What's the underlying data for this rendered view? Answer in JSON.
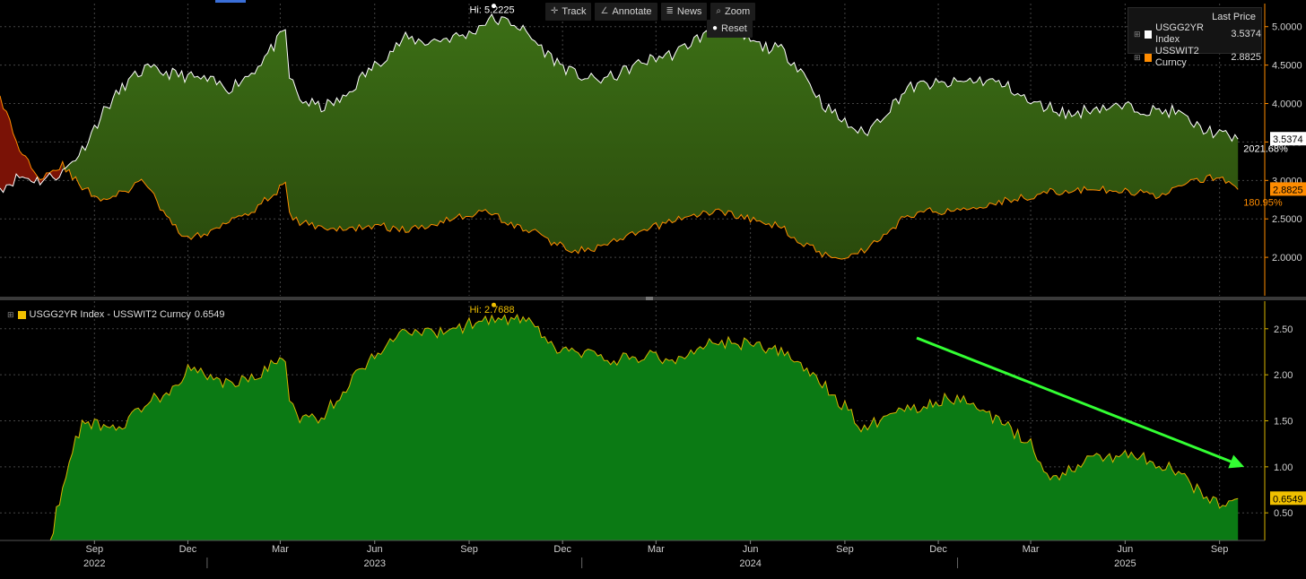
{
  "toolbar": {
    "track": "Track",
    "annotate": "Annotate",
    "news": "News",
    "zoom": "Zoom",
    "reset": "Reset"
  },
  "legend_top": {
    "title": "Last Price",
    "entries": [
      {
        "name": "USGG2YR Index",
        "value": "3.5374",
        "color": "#ffffff"
      },
      {
        "name": "USSWIT2 Curncy",
        "value": "2.8825",
        "color": "#ff8c00"
      }
    ]
  },
  "legend_bottom": {
    "name": "USGG2YR Index - USSWIT2 Curncy",
    "value": "0.6549",
    "color": "#f0c000"
  },
  "colors": {
    "upper_fill": "#3c6f16",
    "upper_fill_deep": "#2a4a0c",
    "yield_line": "#ffffff",
    "swap_line": "#ff8c00",
    "inverted_fill": "#7a1206",
    "lower_fill": "#0b7a14",
    "lower_line": "#d8b400",
    "arrow": "#33ff33",
    "axis_text": "#d0d0d0"
  },
  "chart_data": [
    {
      "type": "line",
      "panel": "top",
      "x_range": [
        "2022-06-01",
        "2025-10-15"
      ],
      "ylim": [
        1.5,
        5.3
      ],
      "y_ticks": [
        "2.0000",
        "2.5000",
        "3.0000",
        "3.5000",
        "4.0000",
        "4.5000",
        "5.0000"
      ],
      "series": [
        {
          "name": "USGG2YR Index",
          "x": [
            "2022-06-01",
            "2022-06-20",
            "2022-07-10",
            "2022-08-01",
            "2022-08-20",
            "2022-09-10",
            "2022-10-01",
            "2022-10-20",
            "2022-11-10",
            "2022-12-01",
            "2022-12-20",
            "2023-01-10",
            "2023-02-01",
            "2023-02-20",
            "2023-03-06",
            "2023-03-10",
            "2023-03-20",
            "2023-04-10",
            "2023-05-01",
            "2023-05-20",
            "2023-06-10",
            "2023-07-01",
            "2023-07-20",
            "2023-08-10",
            "2023-09-01",
            "2023-09-20",
            "2023-10-15",
            "2023-11-01",
            "2023-11-20",
            "2023-12-10",
            "2024-01-01",
            "2024-01-20",
            "2024-02-10",
            "2024-03-01",
            "2024-03-20",
            "2024-04-10",
            "2024-05-01",
            "2024-05-20",
            "2024-06-10",
            "2024-07-01",
            "2024-07-20",
            "2024-08-10",
            "2024-09-01",
            "2024-09-20",
            "2024-10-15",
            "2024-11-01",
            "2024-11-20",
            "2024-12-10",
            "2025-01-01",
            "2025-01-20",
            "2025-02-10",
            "2025-03-01",
            "2025-03-20",
            "2025-04-10",
            "2025-05-01",
            "2025-05-20",
            "2025-06-10",
            "2025-07-01",
            "2025-07-20",
            "2025-08-10",
            "2025-09-01",
            "2025-09-19"
          ],
          "values": [
            2.9,
            3.05,
            3.0,
            3.1,
            3.4,
            3.9,
            4.25,
            4.45,
            4.4,
            4.35,
            4.3,
            4.2,
            4.4,
            4.7,
            4.95,
            4.35,
            4.05,
            3.95,
            4.05,
            4.35,
            4.6,
            4.85,
            4.8,
            4.85,
            4.9,
            5.1,
            5.05,
            4.85,
            4.6,
            4.4,
            4.3,
            4.35,
            4.5,
            4.6,
            4.65,
            4.85,
            4.95,
            4.9,
            4.75,
            4.7,
            4.45,
            4.0,
            3.75,
            3.6,
            3.95,
            4.2,
            4.25,
            4.25,
            4.3,
            4.3,
            4.2,
            4.0,
            3.95,
            3.85,
            3.95,
            3.95,
            3.95,
            3.9,
            3.9,
            3.7,
            3.6,
            3.5374
          ]
        },
        {
          "name": "USSWIT2 Curncy",
          "x": [
            "2022-06-01",
            "2022-06-20",
            "2022-07-10",
            "2022-08-01",
            "2022-08-20",
            "2022-09-10",
            "2022-10-01",
            "2022-10-20",
            "2022-11-10",
            "2022-12-01",
            "2022-12-20",
            "2023-01-10",
            "2023-02-01",
            "2023-02-20",
            "2023-03-06",
            "2023-03-10",
            "2023-03-20",
            "2023-04-10",
            "2023-05-01",
            "2023-05-20",
            "2023-06-10",
            "2023-07-01",
            "2023-07-20",
            "2023-08-10",
            "2023-09-01",
            "2023-09-20",
            "2023-10-15",
            "2023-11-01",
            "2023-11-20",
            "2023-12-10",
            "2024-01-01",
            "2024-01-20",
            "2024-02-10",
            "2024-03-01",
            "2024-03-20",
            "2024-04-10",
            "2024-05-01",
            "2024-05-20",
            "2024-06-10",
            "2024-07-01",
            "2024-07-20",
            "2024-08-10",
            "2024-09-01",
            "2024-09-20",
            "2024-10-15",
            "2024-11-01",
            "2024-11-20",
            "2024-12-10",
            "2025-01-01",
            "2025-01-20",
            "2025-02-10",
            "2025-03-01",
            "2025-03-20",
            "2025-04-10",
            "2025-05-01",
            "2025-05-20",
            "2025-06-10",
            "2025-07-01",
            "2025-07-20",
            "2025-08-10",
            "2025-09-01",
            "2025-09-19"
          ],
          "values": [
            4.1,
            3.4,
            3.05,
            3.2,
            2.9,
            2.75,
            2.85,
            3.0,
            2.5,
            2.25,
            2.3,
            2.5,
            2.6,
            2.8,
            2.95,
            2.55,
            2.45,
            2.4,
            2.35,
            2.4,
            2.4,
            2.35,
            2.4,
            2.5,
            2.55,
            2.6,
            2.4,
            2.35,
            2.2,
            2.1,
            2.1,
            2.2,
            2.3,
            2.4,
            2.5,
            2.55,
            2.6,
            2.55,
            2.45,
            2.4,
            2.2,
            2.05,
            2.0,
            2.1,
            2.35,
            2.55,
            2.6,
            2.6,
            2.65,
            2.7,
            2.75,
            2.8,
            2.85,
            2.85,
            2.9,
            2.85,
            2.85,
            2.8,
            2.9,
            3.0,
            3.05,
            2.8825
          ]
        }
      ],
      "annotations": [
        {
          "text": "Hi: 5.2225",
          "x": "2023-09-25",
          "y": 5.2225
        },
        {
          "text": "2021.68%",
          "x": "2025-09-19",
          "y": 3.42
        },
        {
          "text": "180.95%",
          "x": "2025-09-19",
          "y": 2.72
        }
      ],
      "last_labels": [
        "3.5374",
        "2.8825"
      ]
    },
    {
      "type": "area",
      "panel": "bottom",
      "name": "USGG2YR Index - USSWIT2 Curncy",
      "x_range": [
        "2022-06-01",
        "2025-10-15"
      ],
      "ylim": [
        0.2,
        2.8
      ],
      "y_ticks": [
        "0.50",
        "1.00",
        "1.50",
        "2.00",
        "2.50"
      ],
      "x": [
        "2022-07-20",
        "2022-08-01",
        "2022-08-20",
        "2022-09-10",
        "2022-10-01",
        "2022-10-20",
        "2022-11-10",
        "2022-12-01",
        "2022-12-20",
        "2023-01-10",
        "2023-02-01",
        "2023-02-20",
        "2023-03-06",
        "2023-03-10",
        "2023-03-20",
        "2023-04-10",
        "2023-05-01",
        "2023-05-20",
        "2023-06-10",
        "2023-07-01",
        "2023-07-20",
        "2023-08-10",
        "2023-09-01",
        "2023-09-20",
        "2023-10-15",
        "2023-11-01",
        "2023-11-20",
        "2023-12-10",
        "2024-01-01",
        "2024-01-20",
        "2024-02-10",
        "2024-03-01",
        "2024-03-20",
        "2024-04-10",
        "2024-05-01",
        "2024-05-20",
        "2024-06-10",
        "2024-07-01",
        "2024-07-20",
        "2024-08-10",
        "2024-09-01",
        "2024-09-20",
        "2024-10-15",
        "2024-11-01",
        "2024-11-20",
        "2024-12-10",
        "2025-01-01",
        "2025-01-20",
        "2025-02-10",
        "2025-03-01",
        "2025-03-20",
        "2025-04-10",
        "2025-05-01",
        "2025-05-20",
        "2025-06-10",
        "2025-07-01",
        "2025-07-20",
        "2025-08-10",
        "2025-09-01",
        "2025-09-19"
      ],
      "values": [
        0.2,
        0.8,
        1.5,
        1.45,
        1.45,
        1.7,
        1.8,
        2.05,
        2.0,
        1.9,
        1.95,
        2.1,
        2.2,
        1.7,
        1.5,
        1.55,
        1.8,
        2.1,
        2.3,
        2.5,
        2.45,
        2.45,
        2.55,
        2.6,
        2.6,
        2.55,
        2.3,
        2.25,
        2.2,
        2.15,
        2.2,
        2.2,
        2.15,
        2.3,
        2.35,
        2.35,
        2.3,
        2.25,
        2.1,
        1.9,
        1.65,
        1.4,
        1.6,
        1.65,
        1.65,
        1.75,
        1.7,
        1.55,
        1.4,
        1.25,
        0.85,
        1.0,
        1.1,
        1.1,
        1.15,
        1.05,
        0.95,
        0.75,
        0.6,
        0.6549
      ],
      "annotations": [
        {
          "text": "Hi: 2.7688",
          "x": "2023-09-25",
          "y": 2.7688
        }
      ],
      "trend_arrow": {
        "from": [
          "2024-11-10",
          2.4
        ],
        "to": [
          "2025-09-25",
          1.0
        ]
      },
      "last_label": "0.6549"
    }
  ],
  "x_axis": {
    "months": [
      {
        "label": "Sep",
        "date": "2022-09-01"
      },
      {
        "label": "Dec",
        "date": "2022-12-01"
      },
      {
        "label": "Mar",
        "date": "2023-03-01"
      },
      {
        "label": "Jun",
        "date": "2023-06-01"
      },
      {
        "label": "Sep",
        "date": "2023-09-01"
      },
      {
        "label": "Dec",
        "date": "2023-12-01"
      },
      {
        "label": "Mar",
        "date": "2024-03-01"
      },
      {
        "label": "Jun",
        "date": "2024-06-01"
      },
      {
        "label": "Sep",
        "date": "2024-09-01"
      },
      {
        "label": "Dec",
        "date": "2024-12-01"
      },
      {
        "label": "Mar",
        "date": "2025-03-01"
      },
      {
        "label": "Jun",
        "date": "2025-06-01"
      },
      {
        "label": "Sep",
        "date": "2025-09-01"
      }
    ],
    "years": [
      {
        "label": "2022",
        "date": "2022-09-01"
      },
      {
        "label": "2023",
        "date": "2023-06-01"
      },
      {
        "label": "2024",
        "date": "2024-06-01"
      },
      {
        "label": "2025",
        "date": "2025-06-01"
      }
    ],
    "year_dividers": [
      "2023-01-01",
      "2024-01-01",
      "2025-01-01"
    ]
  }
}
